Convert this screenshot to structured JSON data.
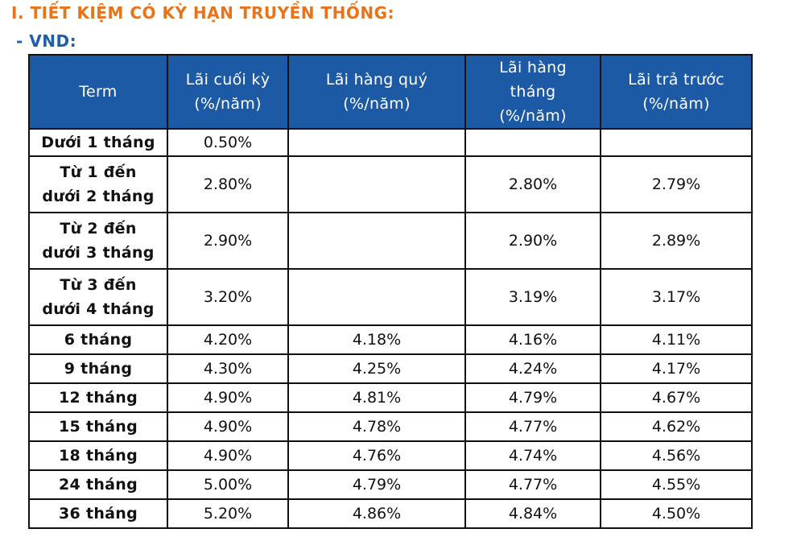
{
  "section_title": "I. TIẾT KIỆM CÓ KỲ HẠN TRUYỀN THỐNG:",
  "sub_title": "- VND:",
  "table": {
    "headers": [
      "Term",
      "Lãi cuối kỳ (%/năm)",
      "Lãi hàng quý (%/năm)",
      "Lãi hàng tháng (%/năm)",
      "Lãi trả trước (%/năm)"
    ],
    "rows": [
      [
        "Dưới 1 tháng",
        "0.50%",
        "",
        "",
        ""
      ],
      [
        "Từ 1 đến dưới 2 tháng",
        "2.80%",
        "",
        "2.80%",
        "2.79%"
      ],
      [
        "Từ 2 đến dưới 3 tháng",
        "2.90%",
        "",
        "2.90%",
        "2.89%"
      ],
      [
        "Từ 3 đến dưới 4 tháng",
        "3.20%",
        "",
        "3.19%",
        "3.17%"
      ],
      [
        "6 tháng",
        "4.20%",
        "4.18%",
        "4.16%",
        "4.11%"
      ],
      [
        "9 tháng",
        "4.30%",
        "4.25%",
        "4.24%",
        "4.17%"
      ],
      [
        "12 tháng",
        "4.90%",
        "4.81%",
        "4.79%",
        "4.67%"
      ],
      [
        "15 tháng",
        "4.90%",
        "4.78%",
        "4.77%",
        "4.62%"
      ],
      [
        "18 tháng",
        "4.90%",
        "4.76%",
        "4.74%",
        "4.56%"
      ],
      [
        "24 tháng",
        "5.00%",
        "4.79%",
        "4.77%",
        "4.55%"
      ],
      [
        "36 tháng",
        "5.20%",
        "4.86%",
        "4.84%",
        "4.50%"
      ]
    ]
  },
  "colors": {
    "section_title": "#e8731d",
    "sub_title": "#1f5fa8",
    "header_bg": "#1d5aa5"
  }
}
